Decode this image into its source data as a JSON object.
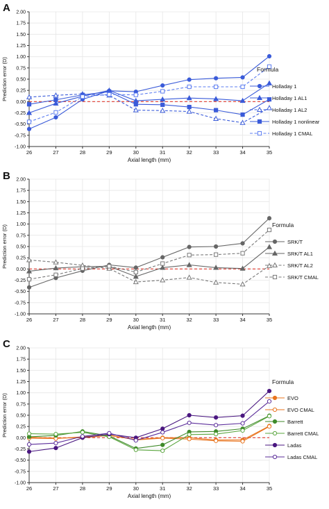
{
  "chart_data": [
    {
      "type": "line",
      "panel_label": "A",
      "xlabel": "Axial length (mm)",
      "ylabel": "Prediction error (D)",
      "x": [
        26,
        27,
        28,
        29,
        30,
        31,
        32,
        33,
        34,
        35
      ],
      "xticks": [
        "26",
        "27",
        "28",
        "29",
        "30",
        "31",
        "32",
        "33",
        "34",
        "35"
      ],
      "ylim": [
        -1.0,
        2.0
      ],
      "yticks": [
        "-1.00",
        "-0.75",
        "-0.50",
        "-0.25",
        "0.00",
        "0.25",
        "0.50",
        "0.75",
        "1.00",
        "1.25",
        "1.50",
        "1.75",
        "2.00"
      ],
      "grid": true,
      "reference_line": 0,
      "legend_title": "Formula",
      "legend_position": "right",
      "series": [
        {
          "name": "Holladay 1",
          "color": "#3a5bd9",
          "dash": "solid",
          "marker": "circle",
          "values": [
            -0.61,
            -0.35,
            0.05,
            0.24,
            0.22,
            0.36,
            0.49,
            0.52,
            0.54,
            1.01
          ]
        },
        {
          "name": "Holladay 1 AL1",
          "color": "#3a5bd9",
          "dash": "solid",
          "marker": "triangle",
          "values": [
            -0.25,
            -0.04,
            0.12,
            0.25,
            0.02,
            0.05,
            0.08,
            0.06,
            0.02,
            0.41
          ]
        },
        {
          "name": "Holladay 1 AL2",
          "color": "#3a5bd9",
          "dash": "dash",
          "marker": "triangle-open",
          "values": [
            0.1,
            0.14,
            0.17,
            0.14,
            -0.19,
            -0.2,
            -0.22,
            -0.38,
            -0.47,
            -0.14
          ]
        },
        {
          "name": "Holladay 1 nonlinear",
          "color": "#3a5bd9",
          "dash": "solid",
          "marker": "square",
          "values": [
            -0.06,
            0.04,
            0.15,
            0.22,
            -0.06,
            -0.07,
            -0.12,
            -0.19,
            -0.29,
            0.05
          ]
        },
        {
          "name": "Holladay 1 CMAL",
          "color": "#5b7cf0",
          "dash": "dash",
          "marker": "square-open",
          "values": [
            -0.45,
            -0.24,
            0.11,
            0.16,
            0.15,
            0.23,
            0.33,
            0.33,
            0.33,
            0.78
          ]
        }
      ]
    },
    {
      "type": "line",
      "panel_label": "B",
      "xlabel": "Axial length (mm)",
      "ylabel": "Prediction error (D)",
      "x": [
        26,
        27,
        28,
        29,
        30,
        31,
        32,
        33,
        34,
        35
      ],
      "xticks": [
        "26",
        "27",
        "28",
        "29",
        "30",
        "31",
        "32",
        "33",
        "34",
        "35"
      ],
      "ylim": [
        -1.0,
        2.0
      ],
      "yticks": [
        "-1.00",
        "-0.75",
        "-0.50",
        "-0.25",
        "0.00",
        "0.25",
        "0.50",
        "0.75",
        "1.00",
        "1.25",
        "1.50",
        "1.75",
        "2.00"
      ],
      "grid": true,
      "reference_line": 0,
      "legend_title": "Formula",
      "legend_position": "right",
      "series": [
        {
          "name": "SRK/T",
          "color": "#666666",
          "dash": "solid",
          "marker": "circle",
          "values": [
            -0.41,
            -0.2,
            -0.04,
            0.09,
            0.03,
            0.26,
            0.49,
            0.5,
            0.57,
            1.13
          ]
        },
        {
          "name": "SRK/T AL1",
          "color": "#666666",
          "dash": "solid",
          "marker": "triangle",
          "values": [
            -0.05,
            0.02,
            0.05,
            0.06,
            -0.17,
            0.03,
            0.09,
            0.03,
            0.01,
            0.49
          ]
        },
        {
          "name": "SRK/T AL2",
          "color": "#777777",
          "dash": "dash",
          "marker": "triangle-open",
          "values": [
            0.2,
            0.15,
            0.08,
            0.01,
            -0.29,
            -0.25,
            -0.19,
            -0.3,
            -0.34,
            0.07
          ]
        },
        {
          "name": "SRK/T CMAL",
          "color": "#777777",
          "dash": "dash",
          "marker": "square-open",
          "values": [
            -0.23,
            -0.13,
            0.01,
            0.06,
            -0.07,
            0.12,
            0.31,
            0.32,
            0.35,
            0.87
          ]
        }
      ]
    },
    {
      "type": "line",
      "panel_label": "C",
      "xlabel": "Axial length (mm)",
      "ylabel": "Prediction error (D)",
      "x": [
        26,
        27,
        28,
        29,
        30,
        31,
        32,
        33,
        34,
        35
      ],
      "xticks": [
        "26",
        "27",
        "28",
        "29",
        "30",
        "31",
        "32",
        "33",
        "34",
        "35"
      ],
      "ylim": [
        -1.0,
        2.0
      ],
      "yticks": [
        "-1.00",
        "-0.75",
        "-0.50",
        "-0.25",
        "0.00",
        "0.25",
        "0.50",
        "0.75",
        "1.00",
        "1.25",
        "1.50",
        "1.75",
        "2.00"
      ],
      "grid": true,
      "reference_line": 0,
      "legend_title": "Formula",
      "legend_position": "right",
      "series": [
        {
          "name": "EVO",
          "color": "#e8741e",
          "dash": "solid",
          "marker": "circle",
          "values": [
            0.01,
            -0.01,
            0.0,
            0.05,
            -0.04,
            0.0,
            0.0,
            -0.05,
            -0.05,
            0.26
          ]
        },
        {
          "name": "EVO CMAL",
          "color": "#e8741e",
          "dash": "solid",
          "marker": "circle-open",
          "values": [
            -0.01,
            -0.02,
            0.02,
            0.06,
            -0.05,
            -0.01,
            -0.03,
            -0.07,
            -0.08,
            0.25
          ]
        },
        {
          "name": "Barrett",
          "color": "#3f8a2a",
          "dash": "solid",
          "marker": "circle",
          "values": [
            0.02,
            0.05,
            0.14,
            0.04,
            -0.24,
            -0.16,
            0.13,
            0.14,
            0.2,
            0.49
          ]
        },
        {
          "name": "Barrett CMAL",
          "color": "#5aa53e",
          "dash": "solid",
          "marker": "circle-open",
          "values": [
            0.09,
            0.08,
            0.12,
            0.02,
            -0.27,
            -0.29,
            0.07,
            0.08,
            0.16,
            0.48
          ]
        },
        {
          "name": "Ladas",
          "color": "#4a1780",
          "dash": "solid",
          "marker": "circle",
          "values": [
            -0.31,
            -0.23,
            0.0,
            0.08,
            0.0,
            0.2,
            0.5,
            0.45,
            0.49,
            1.04
          ]
        },
        {
          "name": "Ladas CMAL",
          "color": "#5b2d9a",
          "dash": "solid",
          "marker": "circle-open",
          "values": [
            -0.15,
            -0.12,
            0.03,
            0.1,
            -0.06,
            0.12,
            0.33,
            0.28,
            0.32,
            0.81
          ]
        }
      ]
    }
  ]
}
